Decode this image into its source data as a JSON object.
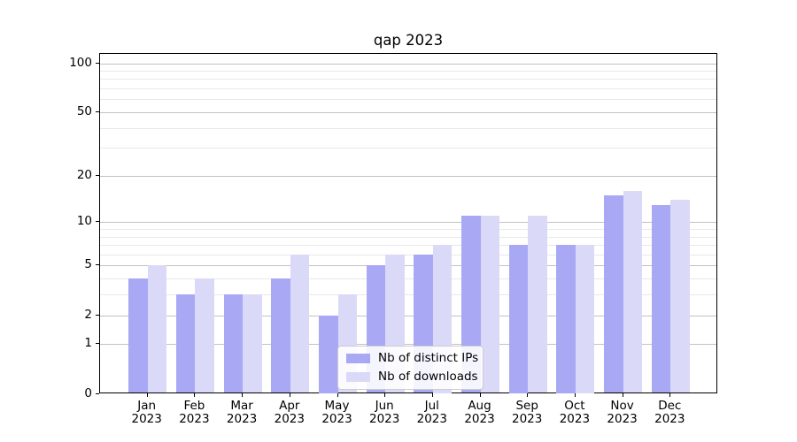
{
  "chart_data": {
    "type": "bar",
    "title": "qap 2023",
    "categories": [
      "Jan 2023",
      "Feb 2023",
      "Mar 2023",
      "Apr 2023",
      "May 2023",
      "Jun 2023",
      "Jul 2023",
      "Aug 2023",
      "Sep 2023",
      "Oct 2023",
      "Nov 2023",
      "Dec 2023"
    ],
    "series": [
      {
        "name": "Nb of distinct IPs",
        "color": "#a8a8f5",
        "values": [
          4,
          3,
          3,
          4,
          2,
          5,
          6,
          11,
          7,
          7,
          15,
          13
        ]
      },
      {
        "name": "Nb of downloads",
        "color": "#dadaf8",
        "values": [
          5,
          4,
          3,
          6,
          3,
          6,
          7,
          11,
          11,
          7,
          16,
          14
        ]
      }
    ],
    "xlabel": "",
    "ylabel": "",
    "yscale": "log1p",
    "ylim": [
      0,
      114
    ],
    "y_major_ticks": [
      0,
      1,
      2,
      5,
      10,
      20,
      50,
      100
    ],
    "y_major_tick_labels": [
      "0",
      "1",
      "2",
      "5",
      "10",
      "20",
      "50",
      "100"
    ],
    "y_minor_gridlines": [
      3,
      4,
      6,
      7,
      8,
      9,
      30,
      40,
      60,
      70,
      80,
      90
    ],
    "grid": true,
    "legend_position": "lower-center",
    "colors": {
      "major_grid": "#c2c2c2",
      "minor_grid": "#e8e8e8",
      "spine": "#000000",
      "text": "#000000",
      "legend_border": "#cccccc"
    }
  }
}
